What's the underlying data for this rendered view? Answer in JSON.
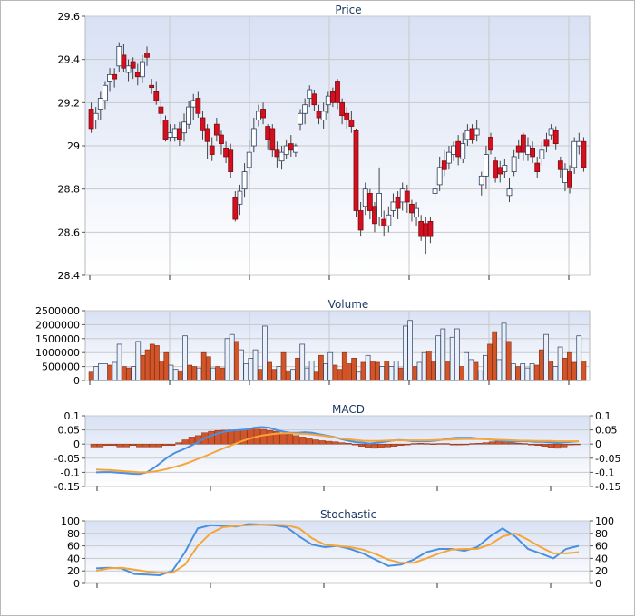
{
  "colors": {
    "up": "#ffffff",
    "down": "#d40f1e",
    "volume_up": "#eaf0fa",
    "volume_down": "#d2552a",
    "macd_hist": "#d2552a",
    "line_blue": "#4a90e2",
    "line_orange": "#f5a53a",
    "panel_top": "#d8e1f4",
    "panel_bottom": "#ffffff",
    "grid": "#c9c9c9",
    "title": "#1f3b66"
  },
  "chart_data": [
    {
      "type": "candlestick",
      "title": "Price",
      "ylim": [
        28.4,
        29.6
      ],
      "yticks": [
        "28.4",
        "28.6",
        "28.8",
        "29",
        "29.2",
        "29.4",
        "29.6"
      ],
      "grid": true,
      "candles": [
        [
          29.17,
          29.08,
          29.2,
          29.06
        ],
        [
          29.12,
          29.15,
          29.18,
          29.08
        ],
        [
          29.17,
          29.22,
          29.25,
          29.12
        ],
        [
          29.21,
          29.28,
          29.3,
          29.17
        ],
        [
          29.3,
          29.33,
          29.36,
          29.25
        ],
        [
          29.33,
          29.31,
          29.36,
          29.27
        ],
        [
          29.37,
          29.46,
          29.48,
          29.34
        ],
        [
          29.42,
          29.36,
          29.47,
          29.34
        ],
        [
          29.34,
          29.37,
          29.4,
          29.3
        ],
        [
          29.39,
          29.36,
          29.41,
          29.31
        ],
        [
          29.34,
          29.32,
          29.38,
          29.28
        ],
        [
          29.32,
          29.39,
          29.42,
          29.29
        ],
        [
          29.43,
          29.41,
          29.46,
          29.37
        ],
        [
          29.28,
          29.27,
          29.31,
          29.24
        ],
        [
          29.25,
          29.21,
          29.3,
          29.19
        ],
        [
          29.18,
          29.15,
          29.22,
          29.1
        ],
        [
          29.12,
          29.03,
          29.14,
          29.02
        ],
        [
          29.04,
          29.06,
          29.1,
          29.02
        ],
        [
          29.04,
          29.08,
          29.1,
          29.02
        ],
        [
          29.08,
          29.03,
          29.11,
          29.0
        ],
        [
          29.06,
          29.11,
          29.15,
          29.02
        ],
        [
          29.1,
          29.18,
          29.21,
          29.08
        ],
        [
          29.18,
          29.21,
          29.24,
          29.12
        ],
        [
          29.22,
          29.15,
          29.25,
          29.13
        ],
        [
          29.13,
          29.07,
          29.16,
          29.03
        ],
        [
          29.08,
          29.02,
          29.1,
          28.94
        ],
        [
          29.0,
          28.96,
          29.04,
          28.93
        ],
        [
          29.1,
          29.05,
          29.13,
          29.02
        ],
        [
          29.05,
          29.01,
          29.07,
          28.96
        ],
        [
          28.99,
          28.95,
          29.02,
          28.92
        ],
        [
          28.98,
          28.88,
          29.01,
          28.85
        ],
        [
          28.76,
          28.66,
          28.79,
          28.65
        ],
        [
          28.73,
          28.79,
          28.82,
          28.68
        ],
        [
          28.8,
          28.88,
          28.92,
          28.76
        ],
        [
          28.9,
          28.97,
          29.03,
          28.87
        ],
        [
          29.0,
          29.08,
          29.13,
          28.97
        ],
        [
          29.12,
          29.16,
          29.19,
          29.09
        ],
        [
          29.17,
          29.13,
          29.2,
          29.1
        ],
        [
          29.09,
          29.03,
          29.1,
          28.98
        ],
        [
          29.08,
          28.98,
          29.1,
          28.95
        ],
        [
          28.98,
          28.95,
          29.02,
          28.9
        ],
        [
          28.93,
          28.97,
          29.0,
          28.89
        ],
        [
          28.96,
          29.0,
          29.03,
          28.94
        ],
        [
          29.01,
          28.98,
          29.05,
          28.95
        ],
        [
          28.97,
          29.0,
          29.01,
          28.95
        ],
        [
          29.1,
          29.15,
          29.17,
          29.07
        ],
        [
          29.15,
          29.19,
          29.22,
          29.1
        ],
        [
          29.22,
          29.26,
          29.28,
          29.18
        ],
        [
          29.24,
          29.19,
          29.26,
          29.16
        ],
        [
          29.16,
          29.13,
          29.19,
          29.1
        ],
        [
          29.12,
          29.16,
          29.2,
          29.08
        ],
        [
          29.19,
          29.23,
          29.25,
          29.15
        ],
        [
          29.25,
          29.2,
          29.27,
          29.18
        ],
        [
          29.3,
          29.2,
          29.31,
          29.17
        ],
        [
          29.2,
          29.14,
          29.22,
          29.1
        ],
        [
          29.15,
          29.12,
          29.18,
          29.08
        ],
        [
          29.12,
          29.09,
          29.16,
          29.06
        ],
        [
          29.07,
          28.7,
          29.08,
          28.67
        ],
        [
          28.7,
          28.61,
          28.74,
          28.58
        ],
        [
          28.72,
          28.8,
          28.83,
          28.68
        ],
        [
          28.78,
          28.7,
          28.8,
          28.66
        ],
        [
          28.72,
          28.64,
          28.74,
          28.6
        ],
        [
          28.67,
          28.78,
          28.9,
          28.63
        ],
        [
          28.66,
          28.63,
          28.7,
          28.58
        ],
        [
          28.63,
          28.68,
          28.72,
          28.6
        ],
        [
          28.7,
          28.74,
          28.78,
          28.67
        ],
        [
          28.76,
          28.71,
          28.79,
          28.66
        ],
        [
          28.74,
          28.8,
          28.83,
          28.7
        ],
        [
          28.79,
          28.74,
          28.82,
          28.69
        ],
        [
          28.73,
          28.69,
          28.75,
          28.65
        ],
        [
          28.67,
          28.71,
          28.74,
          28.63
        ],
        [
          28.65,
          28.58,
          28.68,
          28.56
        ],
        [
          28.64,
          28.58,
          28.67,
          28.5
        ],
        [
          28.65,
          28.58,
          28.67,
          28.55
        ],
        [
          28.78,
          28.8,
          28.85,
          28.75
        ],
        [
          28.82,
          28.9,
          28.95,
          28.79
        ],
        [
          28.93,
          28.89,
          28.98,
          28.86
        ],
        [
          28.92,
          28.97,
          29.0,
          28.89
        ],
        [
          28.96,
          29.0,
          29.02,
          28.93
        ],
        [
          29.02,
          28.95,
          29.05,
          28.91
        ],
        [
          28.94,
          29.01,
          29.06,
          28.92
        ],
        [
          29.03,
          29.07,
          29.1,
          29.0
        ],
        [
          29.08,
          29.03,
          29.1,
          29.01
        ],
        [
          29.05,
          29.08,
          29.12,
          29.02
        ],
        [
          28.82,
          28.86,
          28.88,
          28.77
        ],
        [
          28.86,
          28.96,
          29.0,
          28.8
        ],
        [
          29.04,
          28.98,
          29.06,
          28.96
        ],
        [
          28.93,
          28.85,
          28.95,
          28.83
        ],
        [
          28.9,
          28.87,
          28.93,
          28.83
        ],
        [
          28.88,
          28.91,
          28.94,
          28.85
        ],
        [
          28.77,
          28.8,
          28.85,
          28.74
        ],
        [
          28.88,
          28.95,
          28.98,
          28.86
        ],
        [
          29.0,
          28.97,
          29.03,
          28.94
        ],
        [
          29.05,
          28.97,
          29.06,
          28.93
        ],
        [
          28.96,
          29.0,
          29.04,
          28.93
        ],
        [
          28.99,
          28.95,
          29.02,
          28.92
        ],
        [
          28.92,
          28.88,
          28.95,
          28.85
        ],
        [
          28.94,
          28.98,
          29.02,
          28.91
        ],
        [
          29.03,
          29.0,
          29.06,
          28.97
        ],
        [
          29.05,
          29.08,
          29.1,
          29.03
        ],
        [
          29.07,
          29.01,
          29.09,
          28.98
        ],
        [
          28.93,
          28.89,
          28.95,
          28.85
        ],
        [
          28.83,
          28.89,
          28.92,
          28.79
        ],
        [
          28.88,
          28.81,
          28.91,
          28.78
        ],
        [
          28.9,
          29.02,
          29.04,
          28.87
        ],
        [
          29.0,
          29.02,
          29.06,
          28.96
        ],
        [
          29.02,
          28.9,
          29.04,
          28.88
        ]
      ]
    },
    {
      "type": "bar",
      "title": "Volume",
      "ylim": [
        0,
        2500000
      ],
      "yticks": [
        "0",
        "500000",
        "1000000",
        "1500000",
        "2000000",
        "2500000"
      ],
      "grid": true,
      "values": [
        300000,
        500000,
        600000,
        600000,
        550000,
        650000,
        1300000,
        500000,
        450000,
        500000,
        1400000,
        900000,
        1100000,
        1300000,
        1250000,
        700000,
        1000000,
        550000,
        400000,
        350000,
        1600000,
        550000,
        500000,
        450000,
        1000000,
        850000,
        450000,
        500000,
        450000,
        1500000,
        1650000,
        1400000,
        1100000,
        600000,
        800000,
        1100000,
        400000,
        1950000,
        650000,
        400000,
        500000,
        1000000,
        350000,
        400000,
        800000,
        1300000,
        450000,
        700000,
        300000,
        900000,
        600000,
        1000000,
        550000,
        400000,
        1000000,
        600000,
        800000,
        300000,
        650000,
        900000,
        700000,
        650000,
        500000,
        700000,
        500000,
        700000,
        450000,
        1950000,
        2150000,
        500000,
        650000,
        1000000,
        1050000,
        700000,
        1600000,
        1850000,
        700000,
        1550000,
        1850000,
        500000,
        1000000,
        750000,
        650000,
        350000,
        900000,
        1300000,
        1750000,
        750000,
        2050000,
        1400000,
        600000,
        500000,
        600000,
        450000,
        600000,
        550000,
        1100000,
        1650000,
        700000,
        500000,
        1200000,
        800000,
        1000000,
        650000,
        1600000,
        700000
      ],
      "up": [
        false,
        true,
        true,
        true,
        false,
        true,
        true,
        false,
        false,
        true,
        true,
        false,
        false,
        false,
        false,
        false,
        false,
        true,
        true,
        false,
        true,
        false,
        false,
        true,
        false,
        false,
        true,
        false,
        false,
        true,
        true,
        false,
        true,
        true,
        true,
        true,
        false,
        true,
        false,
        false,
        true,
        false,
        false,
        true,
        false,
        true,
        true,
        true,
        false,
        false,
        true,
        true,
        false,
        false,
        false,
        false,
        false,
        true,
        false,
        true,
        false,
        false,
        true,
        false,
        true,
        true,
        false,
        true,
        true,
        false,
        true,
        true,
        false,
        false,
        true,
        true,
        false,
        true,
        true,
        false,
        true,
        true,
        false,
        true,
        true,
        false,
        false,
        true,
        true,
        false,
        true,
        false,
        true,
        true,
        true,
        false,
        false,
        true,
        false,
        true,
        true,
        false,
        false,
        false,
        true,
        false
      ]
    },
    {
      "type": "line",
      "title": "MACD",
      "ylim": [
        -0.15,
        0.1
      ],
      "yticks": [
        "-0.15",
        "-0.1",
        "-0.05",
        "0",
        "0.05",
        "0.1"
      ],
      "grid": true,
      "series": [
        {
          "name": "",
          "kind": "bar",
          "values": [
            -0.01,
            -0.01,
            -0.005,
            -0.005,
            -0.01,
            -0.01,
            -0.005,
            -0.01,
            -0.01,
            -0.01,
            -0.01,
            -0.005,
            -0.005,
            0.005,
            0.015,
            0.025,
            0.03,
            0.04,
            0.045,
            0.048,
            0.049,
            0.05,
            0.05,
            0.052,
            0.053,
            0.053,
            0.052,
            0.048,
            0.045,
            0.04,
            0.035,
            0.03,
            0.025,
            0.02,
            0.015,
            0.012,
            0.01,
            0.008,
            0.005,
            0.003,
            -0.003,
            -0.008,
            -0.012,
            -0.015,
            -0.012,
            -0.01,
            -0.008,
            -0.005,
            -0.003,
            0.002,
            0.003,
            0.002,
            0.001,
            0.002,
            0.002,
            -0.003,
            -0.003,
            -0.002,
            0.002,
            0.003,
            0.005,
            0.008,
            0.01,
            0.01,
            0.005,
            0.003,
            0.002,
            -0.003,
            -0.005,
            -0.008,
            -0.012,
            -0.015,
            -0.01,
            -0.003,
            0.0
          ]
        },
        {
          "name": "",
          "kind": "line",
          "values": [
            -0.1,
            -0.099,
            -0.099,
            -0.101,
            -0.103,
            -0.105,
            -0.106,
            -0.1,
            -0.085,
            -0.065,
            -0.045,
            -0.03,
            -0.02,
            -0.008,
            0.005,
            0.02,
            0.03,
            0.038,
            0.045,
            0.048,
            0.05,
            0.052,
            0.058,
            0.06,
            0.058,
            0.05,
            0.044,
            0.04,
            0.04,
            0.042,
            0.04,
            0.035,
            0.03,
            0.025,
            0.018,
            0.012,
            0.007,
            0.005,
            0.002,
            0.005,
            0.008,
            0.012,
            0.014,
            0.013,
            0.01,
            0.01,
            0.01,
            0.012,
            0.015,
            0.02,
            0.022,
            0.022,
            0.022,
            0.02,
            0.018,
            0.015,
            0.012,
            0.01,
            0.008,
            0.01,
            0.01,
            0.008,
            0.008,
            0.006,
            0.004,
            0.006,
            0.008,
            0.01
          ]
        },
        {
          "name": "",
          "kind": "line",
          "values": [
            -0.09,
            -0.091,
            -0.092,
            -0.094,
            -0.096,
            -0.098,
            -0.1,
            -0.1,
            -0.097,
            -0.093,
            -0.087,
            -0.08,
            -0.073,
            -0.064,
            -0.054,
            -0.044,
            -0.033,
            -0.022,
            -0.012,
            -0.002,
            0.008,
            0.017,
            0.024,
            0.03,
            0.034,
            0.037,
            0.038,
            0.038,
            0.037,
            0.036,
            0.034,
            0.031,
            0.028,
            0.024,
            0.02,
            0.017,
            0.014,
            0.012,
            0.011,
            0.011,
            0.012,
            0.013,
            0.013,
            0.013,
            0.013,
            0.013,
            0.013,
            0.014,
            0.015,
            0.016,
            0.017,
            0.018,
            0.018,
            0.018,
            0.017,
            0.016,
            0.015,
            0.014,
            0.013,
            0.012,
            0.012,
            0.011,
            0.011,
            0.011,
            0.01,
            0.01,
            0.01,
            0.01
          ]
        }
      ]
    },
    {
      "type": "line",
      "title": "Stochastic",
      "ylim": [
        0,
        100
      ],
      "yticks": [
        "0",
        "20",
        "40",
        "60",
        "80",
        "100"
      ],
      "grid": true,
      "series": [
        {
          "name": "",
          "values": [
            24,
            25,
            24,
            15,
            14,
            13,
            20,
            50,
            88,
            93,
            92,
            91,
            95,
            94,
            93,
            90,
            75,
            62,
            58,
            60,
            55,
            48,
            38,
            28,
            30,
            38,
            50,
            55,
            55,
            52,
            58,
            75,
            88,
            75,
            55,
            48,
            40,
            55,
            60
          ]
        },
        {
          "name": "",
          "values": [
            20,
            24,
            25,
            22,
            19,
            17,
            17,
            30,
            60,
            80,
            90,
            92,
            93,
            94,
            94,
            93,
            88,
            72,
            62,
            60,
            58,
            54,
            47,
            38,
            33,
            33,
            40,
            48,
            54,
            55,
            55,
            62,
            75,
            80,
            70,
            58,
            48,
            48,
            50
          ]
        }
      ]
    }
  ]
}
